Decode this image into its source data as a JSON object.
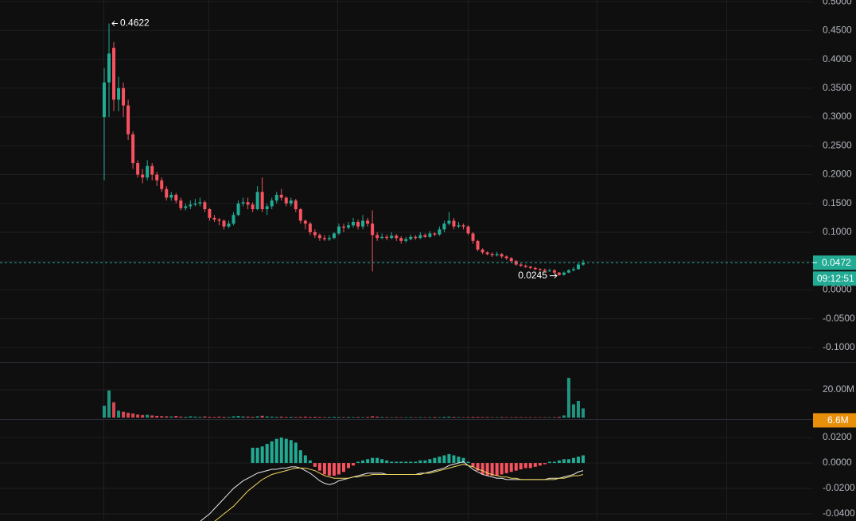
{
  "chart_data": [
    {
      "type": "candlestick",
      "open": [
        0.3,
        0.36,
        0.42,
        0.33,
        0.35,
        0.32,
        0.27,
        0.22,
        0.2,
        0.195,
        0.215,
        0.2,
        0.19,
        0.175,
        0.16,
        0.165,
        0.155,
        0.142,
        0.145,
        0.148,
        0.15,
        0.152,
        0.14,
        0.125,
        0.122,
        0.12,
        0.11,
        0.115,
        0.13,
        0.15,
        0.152,
        0.148,
        0.14,
        0.17,
        0.14,
        0.145,
        0.155,
        0.165,
        0.16,
        0.15,
        0.155,
        0.14,
        0.12,
        0.115,
        0.1,
        0.095,
        0.09,
        0.088,
        0.09,
        0.098,
        0.11,
        0.108,
        0.112,
        0.118,
        0.11,
        0.12,
        0.115,
        0.095,
        0.09,
        0.092,
        0.09,
        0.094,
        0.09,
        0.085,
        0.088,
        0.092,
        0.09,
        0.095,
        0.092,
        0.098,
        0.096,
        0.105,
        0.115,
        0.12,
        0.11,
        0.112,
        0.11,
        0.098,
        0.085,
        0.07,
        0.065,
        0.062,
        0.06,
        0.062,
        0.058,
        0.055,
        0.05,
        0.044,
        0.042,
        0.04,
        0.038,
        0.036,
        0.035,
        0.033,
        0.034,
        0.03,
        0.026,
        0.03,
        0.034,
        0.036,
        0.044
      ],
      "high": [
        0.385,
        0.4622,
        0.43,
        0.37,
        0.36,
        0.33,
        0.275,
        0.225,
        0.21,
        0.225,
        0.22,
        0.205,
        0.195,
        0.18,
        0.17,
        0.168,
        0.16,
        0.15,
        0.155,
        0.158,
        0.16,
        0.155,
        0.142,
        0.13,
        0.125,
        0.122,
        0.12,
        0.135,
        0.155,
        0.16,
        0.16,
        0.152,
        0.18,
        0.195,
        0.15,
        0.16,
        0.17,
        0.175,
        0.162,
        0.16,
        0.158,
        0.142,
        0.122,
        0.118,
        0.105,
        0.098,
        0.095,
        0.095,
        0.1,
        0.115,
        0.115,
        0.118,
        0.125,
        0.122,
        0.13,
        0.125,
        0.138,
        0.1,
        0.098,
        0.096,
        0.1,
        0.097,
        0.093,
        0.092,
        0.096,
        0.095,
        0.1,
        0.098,
        0.102,
        0.1,
        0.11,
        0.12,
        0.135,
        0.125,
        0.118,
        0.115,
        0.112,
        0.1,
        0.087,
        0.072,
        0.067,
        0.065,
        0.066,
        0.064,
        0.06,
        0.057,
        0.052,
        0.046,
        0.044,
        0.042,
        0.04,
        0.038,
        0.037,
        0.037,
        0.036,
        0.031,
        0.032,
        0.036,
        0.04,
        0.046,
        0.052
      ],
      "low": [
        0.19,
        0.3,
        0.31,
        0.31,
        0.3,
        0.26,
        0.21,
        0.195,
        0.185,
        0.19,
        0.19,
        0.18,
        0.17,
        0.155,
        0.155,
        0.15,
        0.138,
        0.138,
        0.14,
        0.145,
        0.145,
        0.135,
        0.12,
        0.118,
        0.112,
        0.105,
        0.107,
        0.112,
        0.128,
        0.145,
        0.14,
        0.135,
        0.138,
        0.135,
        0.13,
        0.14,
        0.15,
        0.155,
        0.145,
        0.145,
        0.135,
        0.115,
        0.105,
        0.095,
        0.09,
        0.085,
        0.085,
        0.085,
        0.088,
        0.095,
        0.1,
        0.105,
        0.108,
        0.105,
        0.105,
        0.11,
        0.032,
        0.085,
        0.088,
        0.086,
        0.088,
        0.085,
        0.08,
        0.082,
        0.086,
        0.087,
        0.088,
        0.09,
        0.09,
        0.093,
        0.094,
        0.1,
        0.112,
        0.105,
        0.107,
        0.105,
        0.095,
        0.08,
        0.067,
        0.062,
        0.06,
        0.057,
        0.058,
        0.055,
        0.052,
        0.047,
        0.042,
        0.04,
        0.038,
        0.036,
        0.034,
        0.033,
        0.031,
        0.031,
        0.028,
        0.0245,
        0.025,
        0.029,
        0.032,
        0.035,
        0.042
      ],
      "close": [
        0.36,
        0.41,
        0.33,
        0.35,
        0.32,
        0.27,
        0.22,
        0.2,
        0.195,
        0.215,
        0.2,
        0.19,
        0.175,
        0.16,
        0.165,
        0.155,
        0.142,
        0.145,
        0.148,
        0.15,
        0.152,
        0.14,
        0.125,
        0.122,
        0.12,
        0.11,
        0.115,
        0.13,
        0.15,
        0.152,
        0.148,
        0.14,
        0.17,
        0.14,
        0.145,
        0.155,
        0.165,
        0.16,
        0.15,
        0.155,
        0.14,
        0.12,
        0.115,
        0.1,
        0.095,
        0.09,
        0.088,
        0.09,
        0.098,
        0.11,
        0.108,
        0.112,
        0.118,
        0.11,
        0.12,
        0.115,
        0.095,
        0.09,
        0.092,
        0.09,
        0.094,
        0.09,
        0.085,
        0.088,
        0.092,
        0.09,
        0.095,
        0.092,
        0.098,
        0.096,
        0.105,
        0.115,
        0.12,
        0.11,
        0.112,
        0.11,
        0.098,
        0.085,
        0.07,
        0.065,
        0.062,
        0.06,
        0.062,
        0.058,
        0.055,
        0.05,
        0.044,
        0.042,
        0.04,
        0.038,
        0.036,
        0.035,
        0.033,
        0.034,
        0.03,
        0.026,
        0.03,
        0.034,
        0.036,
        0.044,
        0.0472
      ],
      "up_color": "#22ab94",
      "down_color": "#f7525f",
      "ylim": [
        -0.125,
        0.503
      ],
      "yticks": [
        {
          "value": 0.5,
          "label": "0.5000"
        },
        {
          "value": 0.45,
          "label": "0.4500"
        },
        {
          "value": 0.4,
          "label": "0.4000"
        },
        {
          "value": 0.35,
          "label": "0.3500"
        },
        {
          "value": 0.3,
          "label": "0.3000"
        },
        {
          "value": 0.25,
          "label": "0.2500"
        },
        {
          "value": 0.2,
          "label": "0.2000"
        },
        {
          "value": 0.15,
          "label": "0.1500"
        },
        {
          "value": 0.1,
          "label": "0.1000"
        },
        {
          "value": 0.05,
          "label": "0.0500"
        },
        {
          "value": 0,
          "label": "0.0000"
        },
        {
          "value": -0.05,
          "label": "-0.0500"
        },
        {
          "value": -0.1,
          "label": "-0.1000"
        }
      ],
      "grid": true,
      "max_label": 0.4622,
      "min_label": 0.0245,
      "last_price": 0.0472,
      "countdown": "09:12:51"
    },
    {
      "type": "bar",
      "values": [
        8500000,
        19500000,
        11000000,
        5000000,
        4200000,
        3500000,
        3000000,
        2200000,
        1800000,
        2000000,
        1500000,
        1200000,
        1000000,
        900000,
        800000,
        1100000,
        700000,
        600000,
        900000,
        700000,
        600000,
        800000,
        600000,
        500000,
        700000,
        600000,
        500000,
        900000,
        1100000,
        800000,
        700000,
        600000,
        900000,
        1300000,
        800000,
        700000,
        600000,
        700000,
        500000,
        600000,
        500000,
        600000,
        700000,
        500000,
        600000,
        500000,
        400000,
        500000,
        600000,
        500000,
        400000,
        500000,
        400000,
        500000,
        400000,
        500000,
        900000,
        700000,
        500000,
        400000,
        300000,
        400000,
        300000,
        300000,
        400000,
        300000,
        400000,
        300000,
        400000,
        500000,
        400000,
        600000,
        700000,
        500000,
        400000,
        300000,
        400000,
        500000,
        500000,
        400000,
        400000,
        300000,
        300000,
        400000,
        300000,
        300000,
        400000,
        400000,
        300000,
        300000,
        300000,
        300000,
        300000,
        300000,
        400000,
        600000,
        1500000,
        28500000,
        9500000,
        12000000,
        6600000
      ],
      "ylim": [
        0,
        40000000
      ],
      "yticks": [
        {
          "value": 20000000,
          "label": "20.00M"
        }
      ],
      "last_label": "6.6M",
      "tag_color": "#e8900c"
    },
    {
      "type": "macd",
      "histogram": [
        null,
        null,
        null,
        null,
        null,
        null,
        null,
        null,
        null,
        null,
        null,
        null,
        null,
        null,
        null,
        null,
        null,
        null,
        null,
        null,
        null,
        null,
        null,
        null,
        null,
        null,
        null,
        null,
        null,
        null,
        null,
        0.012,
        0.012,
        0.013,
        0.015,
        0.017,
        0.019,
        0.02,
        0.019,
        0.018,
        0.016,
        0.01,
        0.006,
        0.002,
        -0.003,
        -0.006,
        -0.009,
        -0.01,
        -0.01,
        -0.009,
        -0.007,
        -0.004,
        -0.002,
        0.001,
        0.002,
        0.003,
        0.004,
        0.004,
        0.003,
        0.002,
        0.001,
        0.001,
        0.001,
        0.001,
        0.001,
        0.001,
        0.002,
        0.002,
        0.003,
        0.004,
        0.005,
        0.006,
        0.007,
        0.006,
        0.005,
        0.004,
        0.001,
        -0.003,
        -0.006,
        -0.009,
        -0.01,
        -0.01,
        -0.01,
        -0.009,
        -0.008,
        -0.007,
        -0.006,
        -0.005,
        -0.004,
        -0.004,
        -0.003,
        -0.002,
        -0.001,
        0.001,
        0.001,
        0.002,
        0.003,
        0.003,
        0.004,
        0.005,
        0.006
      ],
      "lines": [
        {
          "color": "#e8e8e8",
          "values": [
            null,
            null,
            null,
            null,
            null,
            null,
            null,
            null,
            null,
            null,
            null,
            null,
            null,
            null,
            null,
            null,
            null,
            null,
            null,
            -0.05,
            -0.046,
            -0.043,
            -0.04,
            -0.036,
            -0.032,
            -0.028,
            -0.024,
            -0.02,
            -0.017,
            -0.014,
            -0.012,
            -0.01,
            -0.008,
            -0.007,
            -0.006,
            -0.005,
            -0.005,
            -0.004,
            -0.004,
            -0.003,
            -0.003,
            -0.004,
            -0.006,
            -0.008,
            -0.011,
            -0.014,
            -0.016,
            -0.017,
            -0.016,
            -0.014,
            -0.013,
            -0.012,
            -0.011,
            -0.01,
            -0.009,
            -0.008,
            -0.008,
            -0.008,
            -0.008,
            -0.009,
            -0.009,
            -0.009,
            -0.009,
            -0.009,
            -0.009,
            -0.009,
            -0.008,
            -0.008,
            -0.007,
            -0.006,
            -0.005,
            -0.004,
            -0.002,
            -0.001,
            0.0,
            0.001,
            -0.002,
            -0.005,
            -0.007,
            -0.009,
            -0.01,
            -0.011,
            -0.012,
            -0.012,
            -0.013,
            -0.013,
            -0.013,
            -0.013,
            -0.013,
            -0.013,
            -0.013,
            -0.013,
            -0.013,
            -0.012,
            -0.012,
            -0.012,
            -0.011,
            -0.01,
            -0.009,
            -0.007,
            -0.006
          ]
        },
        {
          "color": "#f0d75a",
          "values": [
            null,
            null,
            null,
            null,
            null,
            null,
            null,
            null,
            null,
            null,
            null,
            null,
            null,
            null,
            null,
            null,
            null,
            null,
            null,
            -0.058,
            -0.055,
            -0.052,
            -0.049,
            -0.046,
            -0.043,
            -0.04,
            -0.037,
            -0.034,
            -0.03,
            -0.026,
            -0.022,
            -0.019,
            -0.016,
            -0.013,
            -0.011,
            -0.009,
            -0.008,
            -0.007,
            -0.006,
            -0.005,
            -0.004,
            -0.004,
            -0.004,
            -0.005,
            -0.006,
            -0.008,
            -0.01,
            -0.011,
            -0.012,
            -0.012,
            -0.012,
            -0.012,
            -0.011,
            -0.011,
            -0.01,
            -0.01,
            -0.009,
            -0.009,
            -0.009,
            -0.009,
            -0.009,
            -0.009,
            -0.009,
            -0.009,
            -0.009,
            -0.009,
            -0.009,
            -0.008,
            -0.008,
            -0.007,
            -0.006,
            -0.005,
            -0.004,
            -0.003,
            -0.002,
            -0.001,
            -0.002,
            -0.003,
            -0.005,
            -0.006,
            -0.008,
            -0.009,
            -0.01,
            -0.011,
            -0.011,
            -0.012,
            -0.012,
            -0.013,
            -0.013,
            -0.013,
            -0.013,
            -0.013,
            -0.013,
            -0.013,
            -0.013,
            -0.012,
            -0.012,
            -0.011,
            -0.01,
            -0.01,
            -0.009
          ]
        }
      ],
      "up_color": "#22ab94",
      "down_color": "#f7525f",
      "ylim": [
        -0.0456,
        0.0338
      ],
      "yticks": [
        {
          "value": 0.02,
          "label": "0.0200"
        },
        {
          "value": 0,
          "label": "0.0000"
        },
        {
          "value": -0.02,
          "label": "-0.0200"
        },
        {
          "value": -0.04,
          "label": "-0.0400"
        }
      ]
    }
  ]
}
